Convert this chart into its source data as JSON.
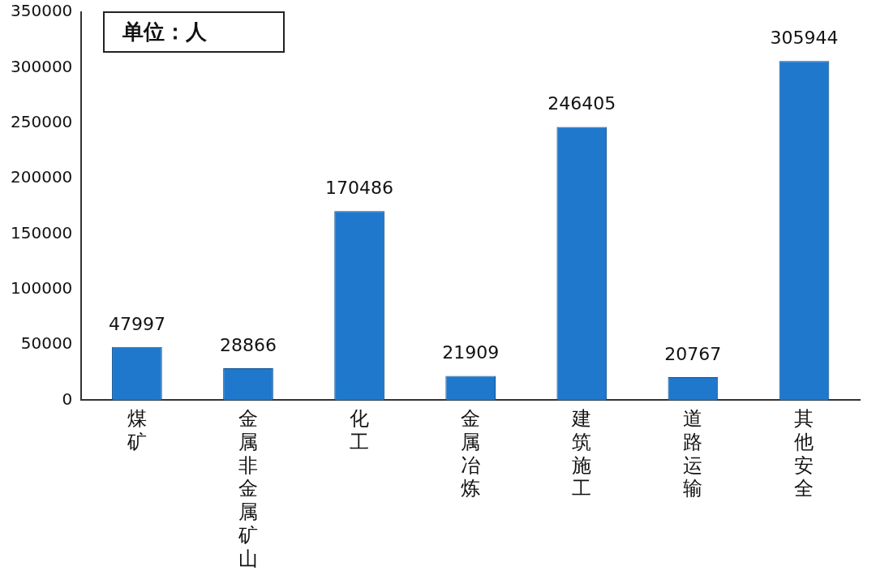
{
  "chart_data": {
    "type": "bar",
    "categories": [
      "煤矿",
      "金属非金属矿山",
      "化工",
      "金属冶炼",
      "建筑施工",
      "道路运输",
      "其他安全"
    ],
    "values": [
      47997,
      28866,
      170486,
      21909,
      246405,
      20767,
      305944
    ],
    "color": "#1f78cc",
    "ylim": [
      0,
      350000
    ],
    "yticks": [
      0,
      50000,
      100000,
      150000,
      200000,
      250000,
      300000,
      350000
    ],
    "grid": false,
    "legend": false,
    "data_labels": true,
    "annotations": [
      "单位：人"
    ]
  }
}
